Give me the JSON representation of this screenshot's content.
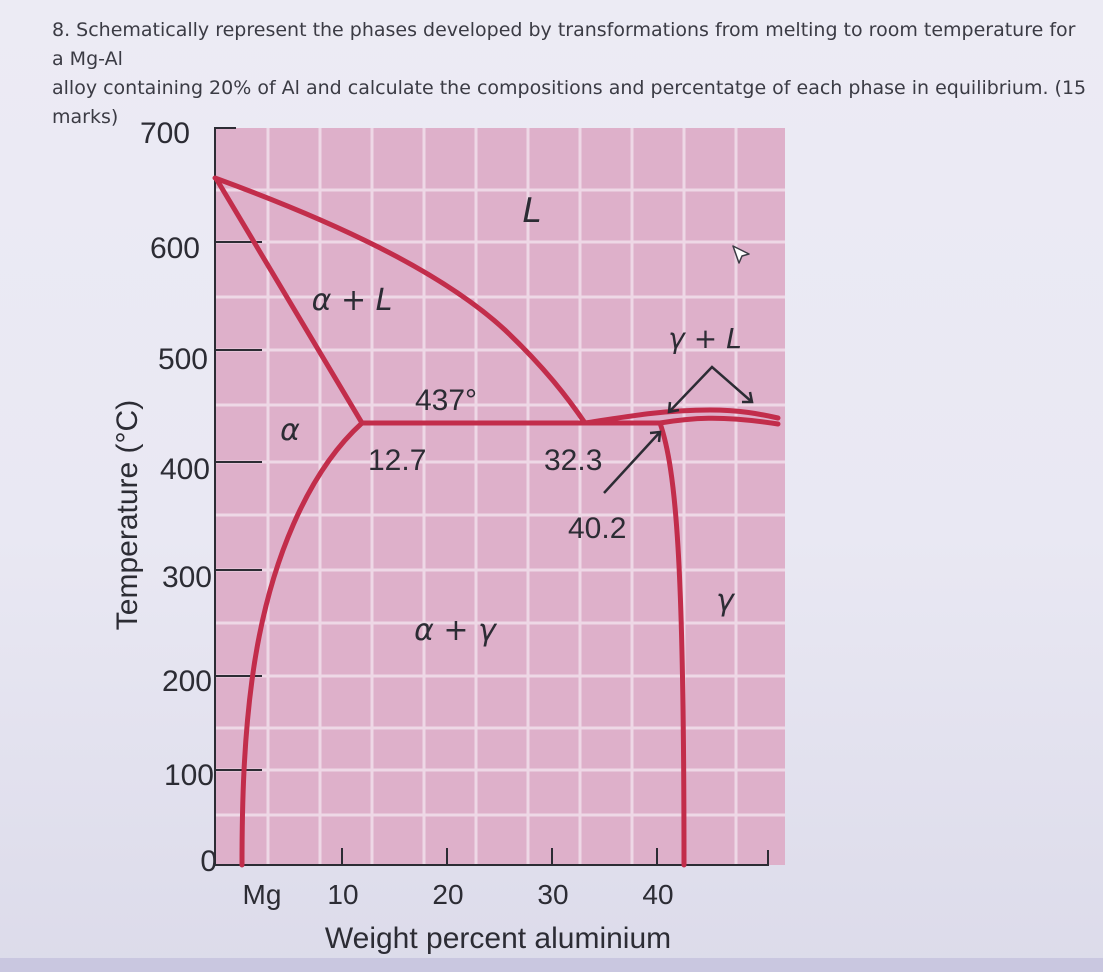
{
  "question": {
    "line1": "8. Schematically represent the phases developed by transformations from melting to room temperature for a Mg-Al",
    "line2": "alloy containing 20% of Al and calculate the compositions and percentatge of each phase in equilibrium. (15 marks)"
  },
  "diagram": {
    "y_axis_label": "Temperature (°C)",
    "x_axis_label": "Weight percent aluminium",
    "y_ticks": [
      "700",
      "600",
      "500",
      "400",
      "300",
      "200",
      "100",
      "0"
    ],
    "x_ticks": [
      "Mg",
      "10",
      "20",
      "30",
      "40"
    ],
    "phase_labels": {
      "liquid": "L",
      "alpha_plus_liquid": "α + L",
      "gamma_plus_liquid": "γ + L",
      "alpha": "α",
      "alpha_plus_gamma": "α + γ",
      "gamma": "γ"
    },
    "annotations": {
      "eutectic_temperature": "437°",
      "alpha_eutectic_composition": "12.7",
      "eutectic_composition": "32.3",
      "gamma_eutectic_composition": "40.2"
    },
    "colors": {
      "plot_background": "#deb0ca",
      "grid": "#eed8e6",
      "phase_boundary": "#c22d4b",
      "text": "#2c2c34"
    }
  }
}
